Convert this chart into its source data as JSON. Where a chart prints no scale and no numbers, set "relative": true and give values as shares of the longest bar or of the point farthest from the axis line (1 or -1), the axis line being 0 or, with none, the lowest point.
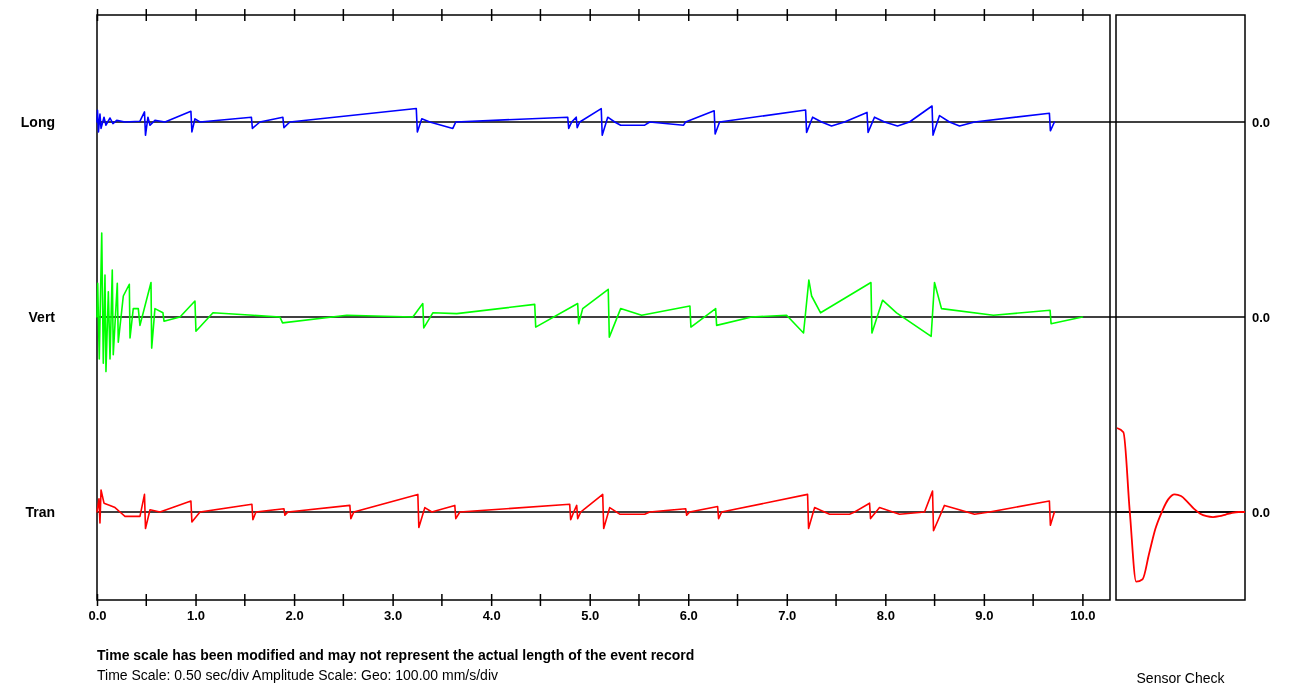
{
  "chart_data": [
    {
      "type": "line",
      "ylabel": "Long",
      "relative": true,
      "color": "#0000ff",
      "xlim": [
        0,
        10.28
      ],
      "tick_labels": false,
      "xticks": [
        {
          "value": 0,
          "label": null
        },
        {
          "value": 1,
          "label": null
        },
        {
          "value": 2,
          "label": null
        },
        {
          "value": 3,
          "label": null
        },
        {
          "value": 4,
          "label": null
        },
        {
          "value": 5,
          "label": null
        },
        {
          "value": 6,
          "label": null
        },
        {
          "value": 7,
          "label": null
        },
        {
          "value": 8,
          "label": null
        },
        {
          "value": 9,
          "label": null
        },
        {
          "value": 10,
          "label": null
        }
      ],
      "x": [
        0,
        0.005,
        0.015,
        0.03,
        0.041,
        0.071,
        0.091,
        0.132,
        0.162,
        0.2,
        0.284,
        0.436,
        0.482,
        0.492,
        0.517,
        0.538,
        0.588,
        0.69,
        0.953,
        0.963,
        0.994,
        1.045,
        1.567,
        1.577,
        1.653,
        1.886,
        1.897,
        1.957,
        3.24,
        3.251,
        3.296,
        3.377,
        3.611,
        3.641,
        4.777,
        4.787,
        4.817,
        4.863,
        4.873,
        4.899,
        5.117,
        5.127,
        5.183,
        5.254,
        5.314,
        5.558,
        5.609,
        5.953,
        5.973,
        6.263,
        6.273,
        6.318,
        7.191,
        7.201,
        7.262,
        7.353,
        7.454,
        7.586,
        7.814,
        7.825,
        7.89,
        7.992,
        8.124,
        8.245,
        8.474,
        8.484,
        8.55,
        8.651,
        8.753,
        8.905,
        9.665,
        9.675,
        9.716
      ],
      "values": [
        0,
        0.73,
        -0.62,
        0.5,
        -0.4,
        0.3,
        -0.2,
        0.25,
        -0.1,
        0.1,
        0,
        0.05,
        0.63,
        -0.83,
        0.3,
        -0.2,
        0.1,
        0,
        0.67,
        -0.62,
        0.2,
        0,
        0.3,
        -0.4,
        0,
        0.3,
        -0.35,
        0,
        0.84,
        -0.62,
        0.2,
        0,
        -0.4,
        0,
        0.3,
        -0.4,
        0,
        0.3,
        -0.35,
        0,
        0.84,
        -0.83,
        0.3,
        0,
        -0.2,
        -0.2,
        0,
        -0.2,
        0,
        0.7,
        -0.75,
        0,
        0.75,
        -0.65,
        0.3,
        0,
        -0.25,
        0,
        0.6,
        -0.65,
        0.3,
        0,
        -0.25,
        0,
        1,
        -0.82,
        0.4,
        0,
        -0.25,
        0,
        0.55,
        -0.55,
        0
      ],
      "annotations": [
        "0.0"
      ]
    },
    {
      "type": "line",
      "ylabel": "Vert",
      "relative": true,
      "color": "#00ff00",
      "xlim": [
        0,
        10.28
      ],
      "tick_labels": false,
      "x": [
        0,
        0.007,
        0.023,
        0.048,
        0.064,
        0.081,
        0.091,
        0.115,
        0.132,
        0.155,
        0.165,
        0.206,
        0.216,
        0.267,
        0.328,
        0.335,
        0.368,
        0.419,
        0.436,
        0.548,
        0.555,
        0.588,
        0.669,
        0.68,
        0.842,
        0.994,
        1.004,
        1.177,
        1.582,
        1.856,
        1.883,
        2.535,
        3.205,
        3.306,
        3.316,
        3.408,
        3.651,
        4.442,
        4.452,
        4.878,
        4.888,
        4.929,
        5.188,
        5.199,
        5.314,
        5.527,
        6.017,
        6.027,
        6.278,
        6.288,
        6.643,
        6.998,
        7.17,
        7.224,
        7.252,
        7.343,
        7.854,
        7.864,
        7.972,
        8.114,
        8.465,
        8.499,
        8.57,
        9.097,
        9.672,
        9.682,
        10
      ],
      "values": [
        0,
        0.4,
        -0.5,
        1,
        -0.55,
        0.5,
        -0.65,
        0.3,
        -0.5,
        0.56,
        -0.45,
        0.4,
        -0.3,
        0.25,
        0.39,
        -0.25,
        0.1,
        0.1,
        -0.1,
        0.41,
        -0.37,
        0.1,
        0.05,
        -0.05,
        0,
        0.19,
        -0.17,
        0.05,
        0.02,
        0,
        -0.07,
        0.02,
        0,
        0.16,
        -0.13,
        0.05,
        0.04,
        0.15,
        -0.12,
        0.16,
        -0.08,
        0.1,
        0.33,
        -0.24,
        0.1,
        0.02,
        0.13,
        -0.12,
        0.1,
        -0.1,
        0,
        0.02,
        -0.19,
        0.44,
        0.25,
        0.05,
        0.41,
        -0.19,
        0.2,
        0.05,
        -0.23,
        0.41,
        0.1,
        0.02,
        0.08,
        -0.08,
        0
      ],
      "annotations": [
        "0.0"
      ]
    },
    {
      "type": "line",
      "ylabel": "Tran",
      "relative": true,
      "color": "#ff0000",
      "xlim": [
        0,
        10.28
      ],
      "tick_labels": "x",
      "xticks": [
        {
          "value": 0,
          "label": "0.0"
        },
        {
          "value": 1,
          "label": "1.0"
        },
        {
          "value": 2,
          "label": "2.0"
        },
        {
          "value": 3,
          "label": "3.0"
        },
        {
          "value": 4,
          "label": "4.0"
        },
        {
          "value": 5,
          "label": "5.0"
        },
        {
          "value": 6,
          "label": "6.0"
        },
        {
          "value": 7,
          "label": "7.0"
        },
        {
          "value": 8,
          "label": "8.0"
        },
        {
          "value": 9,
          "label": "9.0"
        },
        {
          "value": 10,
          "label": "10.0"
        }
      ],
      "x": [
        0,
        0.02,
        0.03,
        0.041,
        0.071,
        0.132,
        0.183,
        0.233,
        0.284,
        0.436,
        0.482,
        0.492,
        0.538,
        0.639,
        0.953,
        0.963,
        1.045,
        1.572,
        1.582,
        1.613,
        1.897,
        1.907,
        1.937,
        2.566,
        2.576,
        2.606,
        3.256,
        3.266,
        3.327,
        3.398,
        3.631,
        3.641,
        3.682,
        4.797,
        4.807,
        4.838,
        4.868,
        4.878,
        4.909,
        5.132,
        5.142,
        5.203,
        5.304,
        5.558,
        5.609,
        5.974,
        5.984,
        6.014,
        6.298,
        6.308,
        6.339,
        7.211,
        7.221,
        7.282,
        7.434,
        7.637,
        7.688,
        7.84,
        7.85,
        7.941,
        8.144,
        8.398,
        8.479,
        8.489,
        8.6,
        8.905,
        9.057,
        9.665,
        9.675,
        9.716
      ],
      "values": [
        0,
        0.6,
        -0.5,
        1,
        0.4,
        0.3,
        0.2,
        0,
        -0.2,
        -0.2,
        0.8,
        -0.75,
        0.1,
        0,
        0.5,
        -0.45,
        0,
        0.35,
        -0.35,
        0,
        0.15,
        -0.15,
        0,
        0.3,
        -0.3,
        0,
        0.8,
        -0.7,
        0.2,
        0,
        0.3,
        -0.3,
        0,
        0.35,
        -0.35,
        0,
        0.3,
        -0.3,
        0,
        0.8,
        -0.75,
        0.2,
        -0.1,
        -0.1,
        0,
        0.15,
        -0.15,
        0,
        0.25,
        -0.3,
        0,
        0.8,
        -0.75,
        0.2,
        -0.1,
        -0.1,
        0,
        0.4,
        -0.3,
        0.2,
        -0.1,
        0,
        0.95,
        -0.85,
        0.3,
        -0.1,
        0,
        0.5,
        -0.6,
        0
      ],
      "annotations": [
        "0.0",
        "Time scale has been modified and may not represent the actual length of the event record",
        "Time Scale: 0.50 sec/div   Amplitude Scale: Geo: 100.00 mm/s/div"
      ]
    },
    {
      "type": "line",
      "xlabel": "Sensor Check",
      "relative": true,
      "color": "#ff0000",
      "tick_labels": false,
      "categories": [
        null,
        null,
        null,
        null,
        null,
        null,
        null,
        null,
        null,
        null,
        null,
        null,
        null,
        null,
        null,
        null,
        null,
        null,
        null,
        null,
        null
      ],
      "values": [
        1,
        0.95,
        0,
        -0.83,
        -0.8,
        -0.5,
        -0.2,
        0,
        0.15,
        0.21,
        0.19,
        0.12,
        0.04,
        -0.02,
        -0.05,
        -0.06,
        -0.05,
        -0.03,
        -0.01,
        0,
        0
      ]
    }
  ]
}
